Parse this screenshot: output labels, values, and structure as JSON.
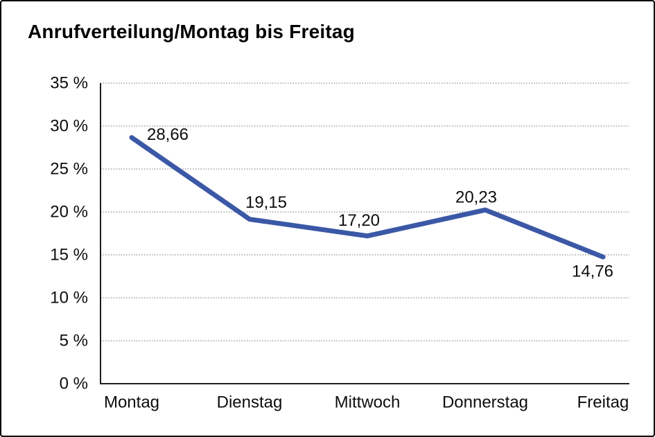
{
  "chart": {
    "title": "Anrufverteilung/Montag bis Freitag"
  },
  "chart_data": {
    "type": "line",
    "title": "Anrufverteilung/Montag bis Freitag",
    "categories": [
      "Montag",
      "Dienstag",
      "Mittwoch",
      "Donnerstag",
      "Freitag"
    ],
    "values": [
      28.66,
      19.15,
      17.2,
      20.23,
      14.76
    ],
    "value_labels": [
      "28,66",
      "19,15",
      "17,20",
      "20,23",
      "14,76"
    ],
    "series_name": "Anrufverteilung",
    "xlabel": "",
    "ylabel": "",
    "ylim": [
      0,
      35
    ],
    "ytick_step": 5,
    "ytick_labels": [
      "0 %",
      "5 %",
      "10 %",
      "15 %",
      "20 %",
      "25 %",
      "30 %",
      "35 %"
    ],
    "grid": "horizontal-dotted",
    "legend": "none",
    "line_color": "#3B58A6",
    "label_color": "#0d0d0d",
    "axis_color": "#000000"
  }
}
